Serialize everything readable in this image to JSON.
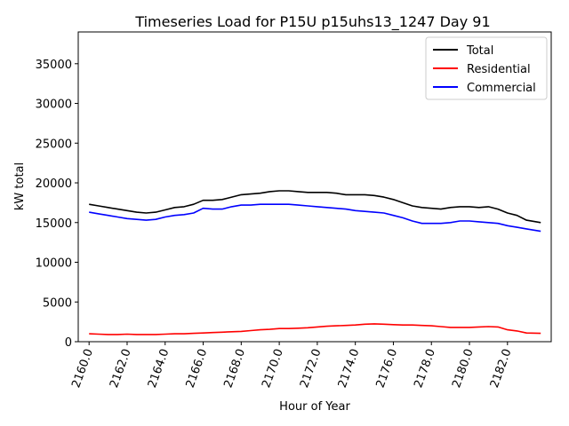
{
  "chart_data": {
    "type": "line",
    "title": "Timeseries Load for P15U p15uhs13_1247  Day 91",
    "xlabel": "Hour of Year",
    "ylabel": "kW total",
    "xlim": [
      2159.43,
      2184.3
    ],
    "ylim": [
      0,
      39000
    ],
    "xticks": [
      2160,
      2162,
      2164,
      2166,
      2168,
      2170,
      2172,
      2174,
      2176,
      2178,
      2180,
      2182
    ],
    "xtick_labels": [
      "2160.0",
      "2162.0",
      "2164.0",
      "2166.0",
      "2168.0",
      "2170.0",
      "2172.0",
      "2174.0",
      "2176.0",
      "2178.0",
      "2180.0",
      "2182.0"
    ],
    "yticks": [
      0,
      5000,
      10000,
      15000,
      20000,
      25000,
      30000,
      35000
    ],
    "ytick_labels": [
      "0",
      "5000",
      "10000",
      "15000",
      "20000",
      "25000",
      "30000",
      "35000"
    ],
    "legend_position": "top-right",
    "series": [
      {
        "name": "Total",
        "color": "#000000",
        "x": [
          2160,
          2160.5,
          2161,
          2161.5,
          2162,
          2162.5,
          2163,
          2163.5,
          2164,
          2164.5,
          2165,
          2165.5,
          2166,
          2166.5,
          2167,
          2167.5,
          2168,
          2168.5,
          2169,
          2169.5,
          2170,
          2170.5,
          2171,
          2171.5,
          2172,
          2172.5,
          2173,
          2173.5,
          2174,
          2174.5,
          2175,
          2175.5,
          2176,
          2176.5,
          2177,
          2177.5,
          2178,
          2178.5,
          2179,
          2179.5,
          2180,
          2180.5,
          2181,
          2181.5,
          2182,
          2182.5,
          2183,
          2183.75
        ],
        "values": [
          17300,
          17100,
          16900,
          16700,
          16500,
          16300,
          16200,
          16300,
          16600,
          16900,
          17000,
          17300,
          17800,
          17800,
          17900,
          18200,
          18500,
          18600,
          18700,
          18900,
          19000,
          19000,
          18900,
          18800,
          18800,
          18800,
          18700,
          18500,
          18500,
          18500,
          18400,
          18200,
          17900,
          17500,
          17100,
          16900,
          16800,
          16700,
          16900,
          17000,
          17000,
          16900,
          17000,
          16700,
          16200,
          15900,
          15300,
          15000
        ]
      },
      {
        "name": "Residential",
        "color": "#ff0000",
        "x": [
          2160,
          2160.5,
          2161,
          2161.5,
          2162,
          2162.5,
          2163,
          2163.5,
          2164,
          2164.5,
          2165,
          2165.5,
          2166,
          2166.5,
          2167,
          2167.5,
          2168,
          2168.5,
          2169,
          2169.5,
          2170,
          2170.5,
          2171,
          2171.5,
          2172,
          2172.5,
          2173,
          2173.5,
          2174,
          2174.5,
          2175,
          2175.5,
          2176,
          2176.5,
          2177,
          2177.5,
          2178,
          2178.5,
          2179,
          2179.5,
          2180,
          2180.5,
          2181,
          2181.5,
          2182,
          2182.5,
          2183,
          2183.75
        ],
        "values": [
          1000,
          950,
          900,
          900,
          950,
          900,
          900,
          900,
          950,
          1000,
          1000,
          1050,
          1100,
          1150,
          1200,
          1250,
          1300,
          1400,
          1500,
          1550,
          1650,
          1650,
          1700,
          1750,
          1850,
          1950,
          2000,
          2050,
          2100,
          2200,
          2250,
          2200,
          2150,
          2100,
          2100,
          2050,
          2000,
          1900,
          1800,
          1800,
          1800,
          1850,
          1900,
          1850,
          1500,
          1350,
          1100,
          1050
        ]
      },
      {
        "name": "Commercial",
        "color": "#0000ff",
        "x": [
          2160,
          2160.5,
          2161,
          2161.5,
          2162,
          2162.5,
          2163,
          2163.5,
          2164,
          2164.5,
          2165,
          2165.5,
          2166,
          2166.5,
          2167,
          2167.5,
          2168,
          2168.5,
          2169,
          2169.5,
          2170,
          2170.5,
          2171,
          2171.5,
          2172,
          2172.5,
          2173,
          2173.5,
          2174,
          2174.5,
          2175,
          2175.5,
          2176,
          2176.5,
          2177,
          2177.5,
          2178,
          2178.5,
          2179,
          2179.5,
          2180,
          2180.5,
          2181,
          2181.5,
          2182,
          2182.5,
          2183,
          2183.75
        ],
        "values": [
          16300,
          16100,
          15900,
          15700,
          15500,
          15400,
          15300,
          15400,
          15700,
          15900,
          16000,
          16200,
          16800,
          16700,
          16700,
          17000,
          17200,
          17200,
          17300,
          17300,
          17300,
          17300,
          17200,
          17100,
          17000,
          16900,
          16800,
          16700,
          16500,
          16400,
          16300,
          16200,
          15900,
          15600,
          15200,
          14900,
          14900,
          14900,
          15000,
          15200,
          15200,
          15100,
          15000,
          14900,
          14600,
          14400,
          14200,
          13900
        ]
      }
    ]
  }
}
